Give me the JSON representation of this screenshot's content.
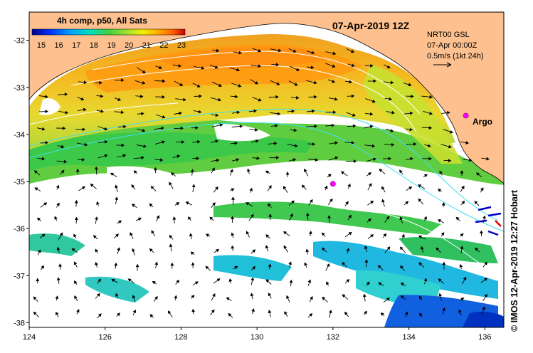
{
  "chart_data": {
    "type": "heatmap",
    "colorbar_title": "4h comp, p50, All Sats",
    "colorbar_ticks": [
      "15",
      "16",
      "17",
      "18",
      "19",
      "20",
      "21",
      "22",
      "23"
    ],
    "timestamp": "07-Apr-2019 12Z",
    "info_lines": [
      "NRT00 GSL",
      "07-Apr 00:00Z",
      "0.5m/s (1kt 24h)"
    ],
    "argo_label": "Argo",
    "x_ticks": [
      "124",
      "126",
      "128",
      "130",
      "132",
      "134",
      "136"
    ],
    "y_ticks": [
      "-32",
      "-33",
      "-34",
      "-35",
      "-36",
      "-37",
      "-38"
    ],
    "xlim": [
      124,
      136.5
    ],
    "ylim": [
      -38.1,
      -31.4
    ],
    "argo_floats": [
      {
        "lon": 135.5,
        "lat": -33.6
      },
      {
        "lon": 132.0,
        "lat": -35.05
      }
    ],
    "reference_vector_ms": 0.5,
    "credit": "© IMOS 12-Apr-2019 12:27 Hobart"
  },
  "colors": {
    "land": "#fdc08e",
    "no_data": "#ffffff",
    "argo_marker": "#ff00ff",
    "sst_scale": [
      "#00008f",
      "#0030ff",
      "#00a0ff",
      "#00e0c0",
      "#40d040",
      "#a0e030",
      "#f0f000",
      "#ffb000",
      "#ff6000",
      "#c80000"
    ]
  }
}
